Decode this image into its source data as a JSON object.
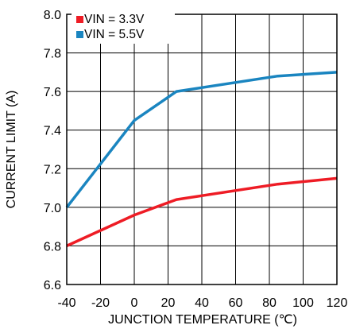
{
  "chart_data": {
    "type": "line",
    "title": "",
    "xlabel": "JUNCTION TEMPERATURE (℃)",
    "ylabel": "CURRENT LIMIT (A)",
    "xlim": [
      -40,
      120
    ],
    "ylim": [
      6.6,
      8.0
    ],
    "x_ticks": [
      "-40",
      "-20",
      "0",
      "20",
      "40",
      "60",
      "80",
      "100",
      "120"
    ],
    "y_ticks": [
      "6.6",
      "6.8",
      "7.0",
      "7.2",
      "7.4",
      "7.6",
      "7.8",
      "8.0"
    ],
    "grid": true,
    "legend_position": "top-left",
    "series": [
      {
        "name": "VIN = 3.3V",
        "color": "#ee1c25",
        "points": [
          [
            -40,
            6.8
          ],
          [
            0,
            6.96
          ],
          [
            25,
            7.04
          ],
          [
            85,
            7.12
          ],
          [
            120,
            7.15
          ]
        ]
      },
      {
        "name": "VIN = 5.5V",
        "color": "#1a85c0",
        "points": [
          [
            -40,
            7.0
          ],
          [
            0,
            7.45
          ],
          [
            25,
            7.6
          ],
          [
            85,
            7.68
          ],
          [
            120,
            7.7
          ]
        ]
      }
    ]
  }
}
